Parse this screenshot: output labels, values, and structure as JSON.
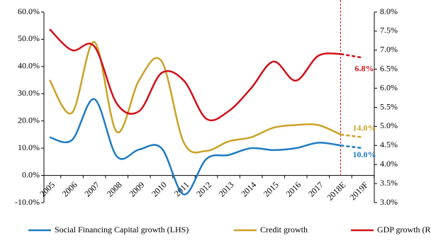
{
  "chart_data": {
    "type": "line",
    "categories": [
      "2005",
      "2006",
      "2007",
      "2008",
      "2009",
      "2010",
      "2011",
      "2012",
      "2013",
      "2014",
      "2015",
      "2016",
      "2017",
      "2018E",
      "2019F"
    ],
    "ylim": [
      -10,
      60
    ],
    "yticks": [
      {
        "value": -10,
        "label": "-10.0%"
      },
      {
        "value": 0,
        "label": "0.0%"
      },
      {
        "value": 10,
        "label": "10.0%"
      },
      {
        "value": 20,
        "label": "20.0%"
      },
      {
        "value": 30,
        "label": "30.0%"
      },
      {
        "value": 40,
        "label": "40.0%"
      },
      {
        "value": 50,
        "label": "50.0%"
      },
      {
        "value": 60,
        "label": "60.0%"
      }
    ],
    "y2lim": [
      3,
      8
    ],
    "y2ticks": [
      {
        "value": 3,
        "label": "3.0%"
      },
      {
        "value": 3.5,
        "label": "3.5%"
      },
      {
        "value": 4,
        "label": "4.0%"
      },
      {
        "value": 4.5,
        "label": "4.5%"
      },
      {
        "value": 5,
        "label": "5.0%"
      },
      {
        "value": 5.5,
        "label": "5.5%"
      },
      {
        "value": 6,
        "label": "6.0%"
      },
      {
        "value": 6.5,
        "label": "6.5%"
      },
      {
        "value": 7,
        "label": "7.0%"
      },
      {
        "value": 7.5,
        "label": "7.5%"
      },
      {
        "value": 8,
        "label": "8.0%"
      }
    ],
    "forecast_from_index": 13,
    "series": [
      {
        "name": "Social Financing Capital growth (LHS)",
        "color": "#1f7bc1",
        "values": [
          14,
          13,
          28,
          7,
          9.5,
          10,
          -7,
          6,
          7.5,
          10,
          9.3,
          10,
          12,
          11,
          10
        ],
        "value_labels": [
          null,
          null,
          null,
          null,
          null,
          null,
          null,
          null,
          null,
          null,
          null,
          null,
          null,
          null,
          "10.0%"
        ]
      },
      {
        "name": "Credit growth",
        "color": "#c9a227",
        "values": [
          35,
          23,
          49,
          16,
          35,
          42,
          12,
          9,
          12.5,
          14,
          17.5,
          18.5,
          18.5,
          15,
          14
        ],
        "value_labels": [
          null,
          null,
          null,
          null,
          null,
          null,
          null,
          null,
          null,
          null,
          null,
          null,
          null,
          null,
          "14.0%"
        ]
      },
      {
        "name": "GDP growth (RHS)",
        "color": "#d0101a",
        "axis": "y2",
        "values": [
          7.55,
          7.0,
          7.1,
          5.6,
          5.4,
          6.4,
          6.2,
          5.2,
          5.4,
          6.0,
          6.7,
          6.2,
          6.85,
          6.9,
          6.8
        ],
        "value_labels": [
          null,
          null,
          null,
          null,
          null,
          null,
          null,
          null,
          null,
          null,
          null,
          null,
          null,
          null,
          "6.8%"
        ]
      }
    ]
  }
}
